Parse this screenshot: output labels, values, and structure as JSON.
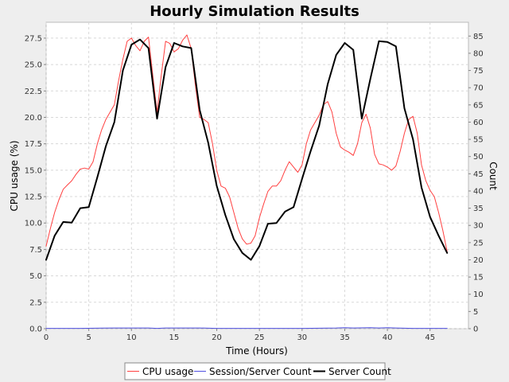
{
  "chart_data": {
    "type": "line",
    "title": "Hourly Simulation Results",
    "xlabel": "Time (Hours)",
    "ylabel": "CPU usage (%)",
    "y2label": "Count",
    "xlim": [
      0,
      49.5
    ],
    "ylim": [
      0,
      29
    ],
    "y2lim": [
      0,
      89
    ],
    "x_ticks": [
      0,
      5,
      10,
      15,
      20,
      25,
      30,
      35,
      40,
      45
    ],
    "y_ticks": [
      "0.0",
      "2.5",
      "5.0",
      "7.5",
      "10.0",
      "12.5",
      "15.0",
      "17.5",
      "20.0",
      "22.5",
      "25.0",
      "27.5"
    ],
    "y2_ticks": [
      0,
      5,
      10,
      15,
      20,
      25,
      30,
      35,
      40,
      45,
      50,
      55,
      60,
      65,
      70,
      75,
      80,
      85
    ],
    "grid": true,
    "legend_position": "bottom",
    "series": [
      {
        "name": "CPU usage",
        "axis": "left",
        "color": "#ff4040",
        "width": 1,
        "points": [
          [
            0,
            7.8
          ],
          [
            0.5,
            9.5
          ],
          [
            1,
            11
          ],
          [
            1.5,
            12.2
          ],
          [
            2,
            13.2
          ],
          [
            2.5,
            13.6
          ],
          [
            3,
            14
          ],
          [
            3.5,
            14.6
          ],
          [
            4,
            15.1
          ],
          [
            4.5,
            15.2
          ],
          [
            5,
            15.1
          ],
          [
            5.5,
            15.8
          ],
          [
            6,
            17.5
          ],
          [
            6.5,
            18.8
          ],
          [
            7,
            19.8
          ],
          [
            7.5,
            20.5
          ],
          [
            8,
            21.2
          ],
          [
            8.5,
            23.5
          ],
          [
            9,
            25.5
          ],
          [
            9.5,
            27.2
          ],
          [
            10,
            27.5
          ],
          [
            10.5,
            26.8
          ],
          [
            11,
            26.3
          ],
          [
            11.5,
            27.2
          ],
          [
            12,
            27.6
          ],
          [
            12.5,
            24
          ],
          [
            13,
            20.5
          ],
          [
            13.5,
            24
          ],
          [
            14,
            27.2
          ],
          [
            14.5,
            27
          ],
          [
            15,
            26.2
          ],
          [
            15.5,
            26.5
          ],
          [
            16,
            27.3
          ],
          [
            16.5,
            27.8
          ],
          [
            17,
            26.5
          ],
          [
            17.5,
            23
          ],
          [
            18,
            20
          ],
          [
            18.5,
            19.8
          ],
          [
            19,
            19.5
          ],
          [
            19.5,
            17.5
          ],
          [
            20,
            15
          ],
          [
            20.5,
            13.5
          ],
          [
            21,
            13.3
          ],
          [
            21.5,
            12.5
          ],
          [
            22,
            11
          ],
          [
            22.5,
            9.5
          ],
          [
            23,
            8.5
          ],
          [
            23.5,
            8
          ],
          [
            24,
            8.1
          ],
          [
            24.5,
            8.8
          ],
          [
            25,
            10.5
          ],
          [
            25.5,
            11.8
          ],
          [
            26,
            13
          ],
          [
            26.5,
            13.5
          ],
          [
            27,
            13.5
          ],
          [
            27.5,
            14
          ],
          [
            28,
            15
          ],
          [
            28.5,
            15.8
          ],
          [
            29,
            15.3
          ],
          [
            29.5,
            14.8
          ],
          [
            30,
            15.5
          ],
          [
            30.5,
            17.5
          ],
          [
            31,
            18.8
          ],
          [
            31.5,
            19.5
          ],
          [
            32,
            20.2
          ],
          [
            32.5,
            21.2
          ],
          [
            33,
            21.5
          ],
          [
            33.5,
            20.5
          ],
          [
            34,
            18.5
          ],
          [
            34.5,
            17.2
          ],
          [
            35,
            16.9
          ],
          [
            35.5,
            16.7
          ],
          [
            36,
            16.4
          ],
          [
            36.5,
            17.5
          ],
          [
            37,
            19.5
          ],
          [
            37.5,
            20.3
          ],
          [
            38,
            19
          ],
          [
            38.5,
            16.5
          ],
          [
            39,
            15.6
          ],
          [
            39.5,
            15.5
          ],
          [
            40,
            15.3
          ],
          [
            40.5,
            15
          ],
          [
            41,
            15.4
          ],
          [
            41.5,
            16.8
          ],
          [
            42,
            18.5
          ],
          [
            42.5,
            19.8
          ],
          [
            43,
            20.1
          ],
          [
            43.5,
            18.5
          ],
          [
            44,
            15.5
          ],
          [
            44.5,
            14
          ],
          [
            45,
            13.1
          ],
          [
            45.5,
            12.5
          ],
          [
            46,
            11
          ],
          [
            46.5,
            9.3
          ],
          [
            47,
            7.3
          ]
        ]
      },
      {
        "name": "Session/Server Count",
        "axis": "right",
        "color": "#5050e0",
        "width": 1,
        "points": [
          [
            0,
            0.1
          ],
          [
            4,
            0.1
          ],
          [
            8,
            0.2
          ],
          [
            12,
            0.2
          ],
          [
            13,
            0.1
          ],
          [
            14,
            0.2
          ],
          [
            18,
            0.2
          ],
          [
            20,
            0.1
          ],
          [
            24,
            0.1
          ],
          [
            28,
            0.1
          ],
          [
            30,
            0.1
          ],
          [
            34,
            0.2
          ],
          [
            35,
            0.3
          ],
          [
            36,
            0.2
          ],
          [
            38,
            0.3
          ],
          [
            39,
            0.2
          ],
          [
            40,
            0.3
          ],
          [
            41,
            0.2
          ],
          [
            43,
            0.1
          ],
          [
            47,
            0.1
          ]
        ]
      },
      {
        "name": "Server Count",
        "axis": "right",
        "color": "#000000",
        "width": 2,
        "points": [
          [
            0,
            20
          ],
          [
            1,
            27
          ],
          [
            2,
            31
          ],
          [
            3,
            30.8
          ],
          [
            4,
            35
          ],
          [
            5,
            35.3
          ],
          [
            6,
            44
          ],
          [
            7,
            53
          ],
          [
            8,
            60
          ],
          [
            9,
            75
          ],
          [
            10,
            82.5
          ],
          [
            11,
            84
          ],
          [
            12,
            81.5
          ],
          [
            13,
            61
          ],
          [
            14,
            76
          ],
          [
            15,
            83
          ],
          [
            16,
            82
          ],
          [
            17,
            81.5
          ],
          [
            18,
            63.5
          ],
          [
            19,
            54
          ],
          [
            20,
            41.5
          ],
          [
            21,
            33
          ],
          [
            22,
            26
          ],
          [
            23,
            22
          ],
          [
            24,
            20
          ],
          [
            25,
            24
          ],
          [
            26,
            30.5
          ],
          [
            27,
            30.7
          ],
          [
            28,
            34
          ],
          [
            29,
            35.3
          ],
          [
            30,
            43.5
          ],
          [
            31,
            51.5
          ],
          [
            32,
            59
          ],
          [
            33,
            71
          ],
          [
            34,
            79.5
          ],
          [
            35,
            83
          ],
          [
            36,
            81
          ],
          [
            37,
            61
          ],
          [
            38,
            72.5
          ],
          [
            39,
            83.5
          ],
          [
            40,
            83.3
          ],
          [
            41,
            82
          ],
          [
            42,
            64
          ],
          [
            43,
            55
          ],
          [
            44,
            41
          ],
          [
            45,
            32.5
          ],
          [
            46,
            27
          ],
          [
            47,
            22
          ]
        ]
      }
    ]
  }
}
